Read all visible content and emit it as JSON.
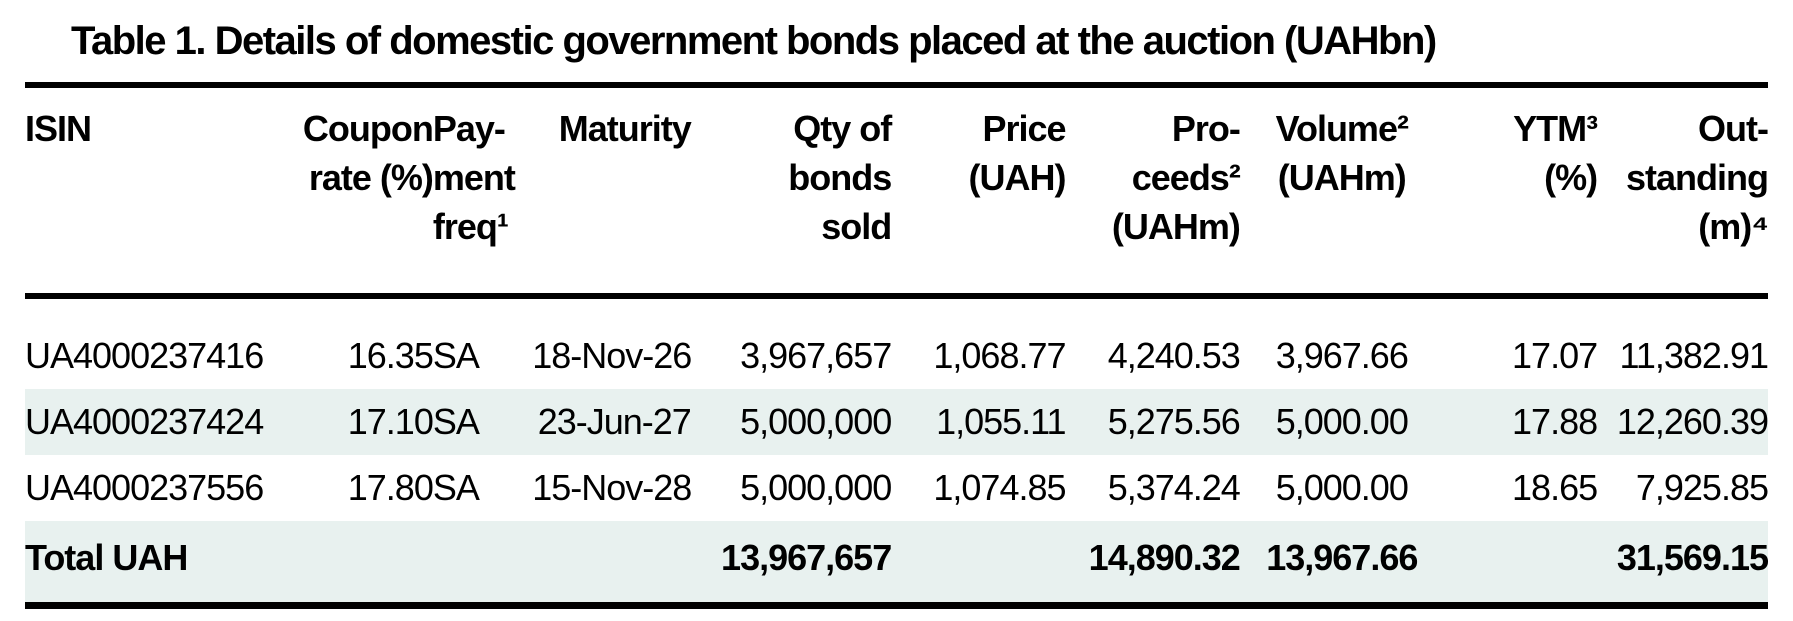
{
  "title": "Table 1. Details of domestic government bonds placed at the auction (UAHbn)",
  "colors": {
    "stripe": "#e8f1ef",
    "rule": "#000000",
    "text": "#000000"
  },
  "table": {
    "columns": [
      {
        "id": "isin",
        "label": "ISIN",
        "align": "left"
      },
      {
        "id": "coupon",
        "label": "Coupon\nrate (%)",
        "align": "right"
      },
      {
        "id": "freq",
        "label": "Pay-\nment\nfreq¹",
        "align": "left"
      },
      {
        "id": "maturity",
        "label": "Maturity",
        "align": "right"
      },
      {
        "id": "qty",
        "label": "Qty of\nbonds\nsold",
        "align": "right"
      },
      {
        "id": "price",
        "label": "Price\n(UAH)",
        "align": "right"
      },
      {
        "id": "proceeds",
        "label": "Pro-\nceeds²\n(UAHm)",
        "align": "right"
      },
      {
        "id": "volume",
        "label": "Volume²\n(UAHm)",
        "align": "center"
      },
      {
        "id": "ytm",
        "label": "YTM³\n(%)",
        "align": "right"
      },
      {
        "id": "outstanding",
        "label": "Out-\nstanding\n(m)⁴",
        "align": "right"
      }
    ],
    "rows": [
      [
        "UA4000237416",
        "16.35",
        "SA",
        "18-Nov-26",
        "3,967,657",
        "1,068.77",
        "4,240.53",
        "3,967.66",
        "17.07",
        "11,382.91"
      ],
      [
        "UA4000237424",
        "17.10",
        "SA",
        "23-Jun-27",
        "5,000,000",
        "1,055.11",
        "5,275.56",
        "5,000.00",
        "17.88",
        "12,260.39"
      ],
      [
        "UA4000237556",
        "17.80",
        "SA",
        "15-Nov-28",
        "5,000,000",
        "1,074.85",
        "5,374.24",
        "5,000.00",
        "18.65",
        "7,925.85"
      ]
    ],
    "total_row": [
      "Total UAH",
      "",
      "",
      "",
      "13,967,657",
      "",
      "14,890.32",
      "13,967.66",
      "",
      "31,569.15"
    ]
  }
}
